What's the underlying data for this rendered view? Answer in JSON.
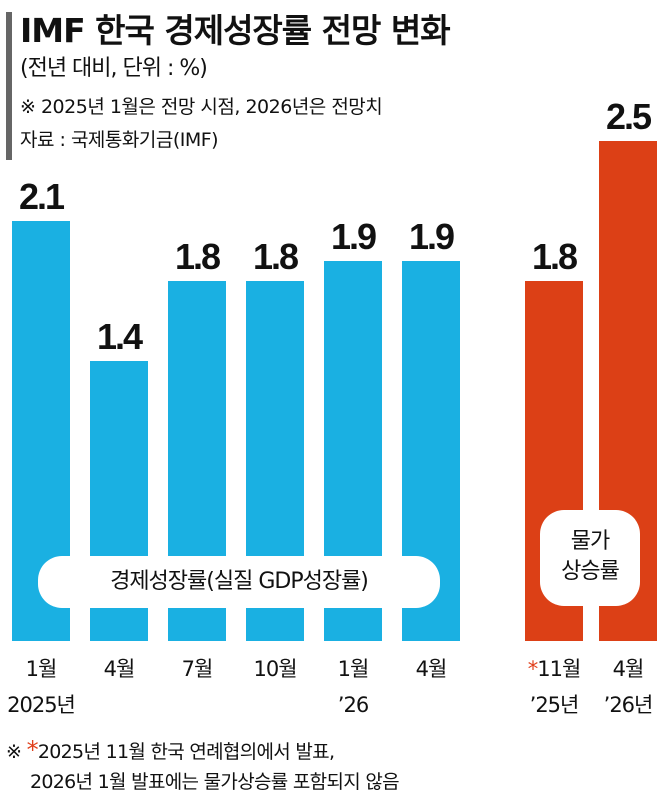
{
  "header": {
    "title": "IMF 한국 경제성장률 전망 변화",
    "unit": "(전년 대비, 단위 : %)",
    "note": "※ 2025년 1월은 전망 시점, 2026년은 전망치",
    "source": "자료 : 국제통화기금(IMF)"
  },
  "colors": {
    "growth": "#1ab0e2",
    "inflation": "#dc4016",
    "star": "#e0401c"
  },
  "chart_data": {
    "type": "bar",
    "ylim": [
      0,
      3.0
    ],
    "grid": false,
    "series": [
      {
        "name": "경제성장률(실질 GDP성장률)",
        "color": "#1ab0e2",
        "points": [
          {
            "x_line1": "1월",
            "x_line2": "2025년",
            "value": 2.1,
            "label": "2.1"
          },
          {
            "x_line1": "4월",
            "x_line2": "",
            "value": 1.4,
            "label": "1.4"
          },
          {
            "x_line1": "7월",
            "x_line2": "",
            "value": 1.8,
            "label": "1.8"
          },
          {
            "x_line1": "10월",
            "x_line2": "",
            "value": 1.8,
            "label": "1.8"
          },
          {
            "x_line1": "1월",
            "x_line2": "’26",
            "value": 1.9,
            "label": "1.9"
          },
          {
            "x_line1": "4월",
            "x_line2": "",
            "value": 1.9,
            "label": "1.9"
          }
        ]
      },
      {
        "name": "물가상승률",
        "name_line1": "물가",
        "name_line2": "상승률",
        "color": "#dc4016",
        "points": [
          {
            "x_star": "*",
            "x_line1": "11월",
            "x_line2": "’25년",
            "value": 1.8,
            "label": "1.8"
          },
          {
            "x_star": "",
            "x_line1": "4월",
            "x_line2": "’26년",
            "value": 2.5,
            "label": "2.5"
          }
        ]
      }
    ]
  },
  "footnote": {
    "mark": "※",
    "star": "*",
    "line1": "2025년 11월 한국 연례협의에서 발표,",
    "line2": "2026년 1월 발표에는 물가상승률 포함되지 않음"
  }
}
